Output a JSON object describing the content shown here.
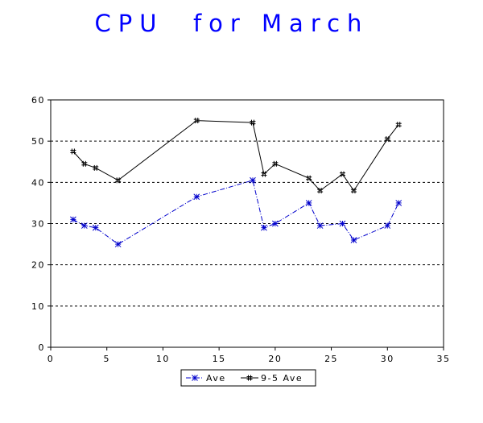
{
  "chart_data": {
    "type": "line",
    "title": "CPU  for March",
    "xlabel": "",
    "ylabel": "",
    "xlim": [
      0,
      35
    ],
    "ylim": [
      0,
      60
    ],
    "x_ticks": [
      0,
      5,
      10,
      15,
      20,
      25,
      30,
      35
    ],
    "y_ticks": [
      0,
      10,
      20,
      30,
      40,
      50,
      60
    ],
    "grid": "horizontal dashed",
    "legend_position": "bottom",
    "series": [
      {
        "name": "Ave",
        "color": "#0000cc",
        "line_style": "dash-dot",
        "marker": "asterisk",
        "x": [
          2,
          3,
          4,
          6,
          13,
          18,
          19,
          20,
          23,
          24,
          26,
          27,
          30,
          31
        ],
        "y": [
          31,
          29.5,
          29,
          25,
          36.5,
          40.5,
          29,
          30,
          35,
          29.5,
          30,
          26,
          29.5,
          35
        ]
      },
      {
        "name": "9-5 Ave",
        "color": "#000000",
        "line_style": "solid",
        "marker": "hash",
        "x": [
          2,
          3,
          4,
          6,
          13,
          18,
          19,
          20,
          23,
          24,
          26,
          27,
          30,
          31
        ],
        "y": [
          47.5,
          44.5,
          43.5,
          40.5,
          55,
          54.5,
          42,
          44.5,
          41,
          38,
          42,
          38,
          50.5,
          54
        ]
      }
    ]
  }
}
